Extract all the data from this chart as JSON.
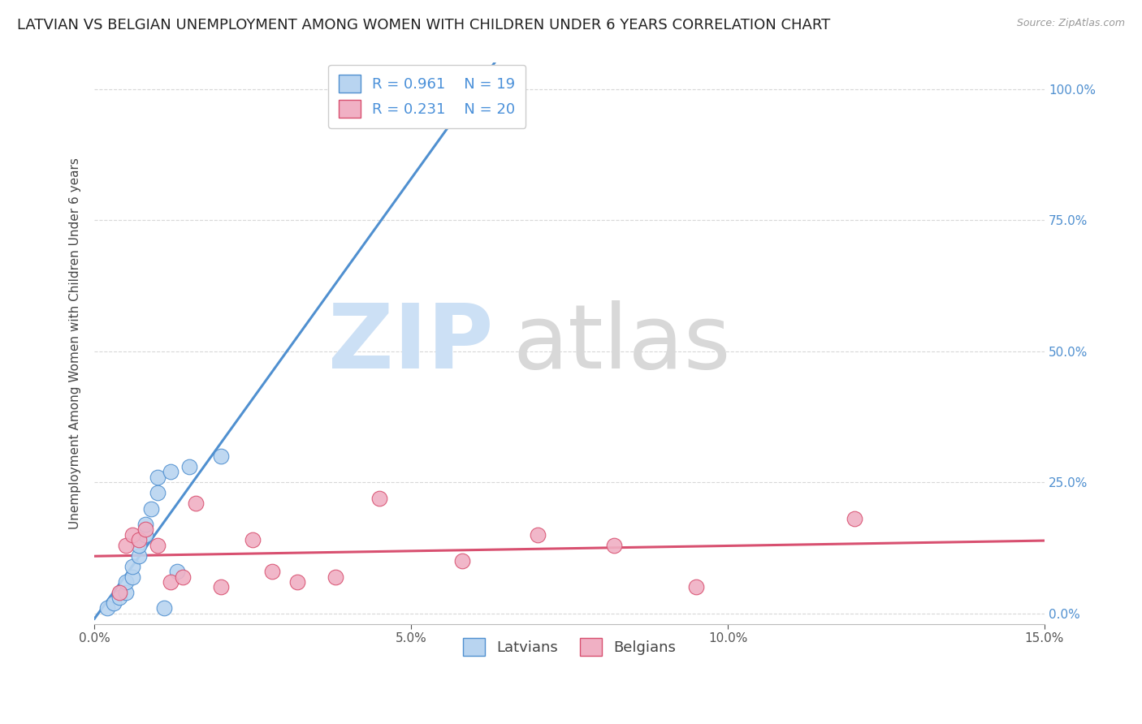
{
  "title": "LATVIAN VS BELGIAN UNEMPLOYMENT AMONG WOMEN WITH CHILDREN UNDER 6 YEARS CORRELATION CHART",
  "source": "Source: ZipAtlas.com",
  "ylabel": "Unemployment Among Women with Children Under 6 years",
  "xlim": [
    0.0,
    0.15
  ],
  "ylim": [
    -0.02,
    1.05
  ],
  "ytick_labels": [
    "0.0%",
    "25.0%",
    "50.0%",
    "75.0%",
    "100.0%"
  ],
  "ytick_vals": [
    0.0,
    0.25,
    0.5,
    0.75,
    1.0
  ],
  "xtick_labels": [
    "0.0%",
    "5.0%",
    "10.0%",
    "15.0%"
  ],
  "xtick_vals": [
    0.0,
    0.05,
    0.1,
    0.15
  ],
  "latvian_color": "#b8d4f0",
  "belgian_color": "#f0b0c4",
  "latvian_line_color": "#5090d0",
  "belgian_line_color": "#d85070",
  "R_latvian": 0.961,
  "N_latvian": 19,
  "R_belgian": 0.231,
  "N_belgian": 20,
  "background_color": "#ffffff",
  "grid_color": "#d8d8d8",
  "latvian_scatter_x": [
    0.002,
    0.003,
    0.004,
    0.005,
    0.005,
    0.006,
    0.006,
    0.007,
    0.007,
    0.008,
    0.008,
    0.009,
    0.01,
    0.01,
    0.011,
    0.012,
    0.013,
    0.015,
    0.02
  ],
  "latvian_scatter_y": [
    0.01,
    0.02,
    0.03,
    0.04,
    0.06,
    0.07,
    0.09,
    0.11,
    0.13,
    0.15,
    0.17,
    0.2,
    0.23,
    0.26,
    0.01,
    0.27,
    0.08,
    0.28,
    0.3
  ],
  "belgian_scatter_x": [
    0.004,
    0.005,
    0.006,
    0.007,
    0.008,
    0.01,
    0.012,
    0.014,
    0.016,
    0.02,
    0.025,
    0.028,
    0.032,
    0.038,
    0.045,
    0.058,
    0.07,
    0.082,
    0.095,
    0.12
  ],
  "belgian_scatter_y": [
    0.04,
    0.13,
    0.15,
    0.14,
    0.16,
    0.13,
    0.06,
    0.07,
    0.21,
    0.05,
    0.14,
    0.08,
    0.06,
    0.07,
    0.22,
    0.1,
    0.15,
    0.13,
    0.05,
    0.18
  ],
  "title_fontsize": 13,
  "axis_label_fontsize": 11,
  "tick_fontsize": 11,
  "legend_fontsize": 13,
  "scatter_size": 180
}
